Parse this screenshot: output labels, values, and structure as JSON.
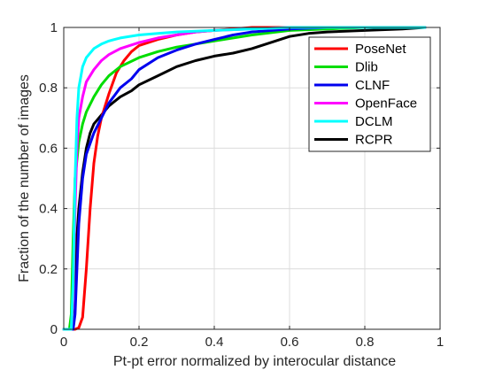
{
  "chart_data": {
    "type": "line",
    "title": "",
    "xlabel": "Pt-pt error normalized by interocular distance",
    "ylabel": "Fraction of the number of images",
    "xlim": [
      0,
      1
    ],
    "ylim": [
      0,
      1
    ],
    "xticks": [
      "0",
      "0.2",
      "0.4",
      "0.6",
      "0.8",
      "1"
    ],
    "yticks": [
      "0",
      "0.2",
      "0.4",
      "0.6",
      "0.8",
      "1"
    ],
    "grid": true,
    "legend_position": "top-right",
    "series": [
      {
        "name": "PoseNet",
        "color": "#ff0000",
        "points": [
          [
            0,
            0
          ],
          [
            0.03,
            0
          ],
          [
            0.04,
            0.005
          ],
          [
            0.05,
            0.04
          ],
          [
            0.06,
            0.2
          ],
          [
            0.07,
            0.4
          ],
          [
            0.08,
            0.55
          ],
          [
            0.09,
            0.64
          ],
          [
            0.1,
            0.7
          ],
          [
            0.12,
            0.78
          ],
          [
            0.14,
            0.85
          ],
          [
            0.16,
            0.89
          ],
          [
            0.18,
            0.92
          ],
          [
            0.2,
            0.94
          ],
          [
            0.25,
            0.96
          ],
          [
            0.3,
            0.975
          ],
          [
            0.35,
            0.985
          ],
          [
            0.4,
            0.99
          ],
          [
            0.45,
            0.995
          ],
          [
            0.5,
            1
          ],
          [
            0.96,
            1
          ]
        ]
      },
      {
        "name": "Dlib",
        "color": "#00dd00",
        "points": [
          [
            0,
            0
          ],
          [
            0.015,
            0
          ],
          [
            0.02,
            0.05
          ],
          [
            0.025,
            0.3
          ],
          [
            0.03,
            0.5
          ],
          [
            0.04,
            0.62
          ],
          [
            0.05,
            0.68
          ],
          [
            0.06,
            0.72
          ],
          [
            0.08,
            0.77
          ],
          [
            0.1,
            0.81
          ],
          [
            0.12,
            0.84
          ],
          [
            0.15,
            0.87
          ],
          [
            0.2,
            0.9
          ],
          [
            0.25,
            0.92
          ],
          [
            0.3,
            0.935
          ],
          [
            0.35,
            0.945
          ],
          [
            0.4,
            0.955
          ],
          [
            0.45,
            0.965
          ],
          [
            0.5,
            0.975
          ],
          [
            0.6,
            0.99
          ],
          [
            0.7,
            0.995
          ],
          [
            0.8,
            1
          ],
          [
            0.96,
            1
          ]
        ]
      },
      {
        "name": "CLNF",
        "color": "#0000ee",
        "points": [
          [
            0,
            0
          ],
          [
            0.025,
            0
          ],
          [
            0.03,
            0.05
          ],
          [
            0.035,
            0.2
          ],
          [
            0.04,
            0.35
          ],
          [
            0.05,
            0.5
          ],
          [
            0.06,
            0.58
          ],
          [
            0.08,
            0.65
          ],
          [
            0.1,
            0.7
          ],
          [
            0.12,
            0.75
          ],
          [
            0.15,
            0.8
          ],
          [
            0.18,
            0.83
          ],
          [
            0.2,
            0.86
          ],
          [
            0.25,
            0.9
          ],
          [
            0.3,
            0.925
          ],
          [
            0.35,
            0.945
          ],
          [
            0.4,
            0.96
          ],
          [
            0.45,
            0.975
          ],
          [
            0.5,
            0.985
          ],
          [
            0.6,
            0.995
          ],
          [
            0.7,
            1
          ],
          [
            0.96,
            1
          ]
        ]
      },
      {
        "name": "OpenFace",
        "color": "#ff00ff",
        "points": [
          [
            0,
            0
          ],
          [
            0.02,
            0
          ],
          [
            0.025,
            0.1
          ],
          [
            0.03,
            0.4
          ],
          [
            0.035,
            0.6
          ],
          [
            0.04,
            0.7
          ],
          [
            0.05,
            0.77
          ],
          [
            0.06,
            0.82
          ],
          [
            0.08,
            0.86
          ],
          [
            0.1,
            0.89
          ],
          [
            0.12,
            0.91
          ],
          [
            0.15,
            0.93
          ],
          [
            0.2,
            0.95
          ],
          [
            0.25,
            0.965
          ],
          [
            0.3,
            0.975
          ],
          [
            0.35,
            0.985
          ],
          [
            0.4,
            0.99
          ],
          [
            0.5,
            0.995
          ],
          [
            0.6,
            1
          ],
          [
            0.96,
            1
          ]
        ]
      },
      {
        "name": "DCLM",
        "color": "#00ffff",
        "points": [
          [
            0,
            0
          ],
          [
            0.02,
            0
          ],
          [
            0.025,
            0.15
          ],
          [
            0.03,
            0.5
          ],
          [
            0.035,
            0.7
          ],
          [
            0.04,
            0.8
          ],
          [
            0.05,
            0.87
          ],
          [
            0.06,
            0.9
          ],
          [
            0.08,
            0.93
          ],
          [
            0.1,
            0.945
          ],
          [
            0.12,
            0.955
          ],
          [
            0.15,
            0.965
          ],
          [
            0.2,
            0.975
          ],
          [
            0.25,
            0.98
          ],
          [
            0.3,
            0.985
          ],
          [
            0.4,
            0.99
          ],
          [
            0.5,
            0.995
          ],
          [
            0.6,
            1
          ],
          [
            0.96,
            1
          ]
        ]
      },
      {
        "name": "RCPR",
        "color": "#000000",
        "points": [
          [
            0,
            0
          ],
          [
            0.02,
            0
          ],
          [
            0.025,
            0.08
          ],
          [
            0.03,
            0.22
          ],
          [
            0.04,
            0.4
          ],
          [
            0.05,
            0.52
          ],
          [
            0.06,
            0.6
          ],
          [
            0.07,
            0.65
          ],
          [
            0.08,
            0.68
          ],
          [
            0.1,
            0.71
          ],
          [
            0.12,
            0.74
          ],
          [
            0.15,
            0.77
          ],
          [
            0.18,
            0.79
          ],
          [
            0.2,
            0.81
          ],
          [
            0.25,
            0.84
          ],
          [
            0.3,
            0.87
          ],
          [
            0.35,
            0.89
          ],
          [
            0.4,
            0.905
          ],
          [
            0.45,
            0.915
          ],
          [
            0.5,
            0.93
          ],
          [
            0.55,
            0.95
          ],
          [
            0.6,
            0.97
          ],
          [
            0.65,
            0.98
          ],
          [
            0.7,
            0.985
          ],
          [
            0.8,
            0.99
          ],
          [
            0.9,
            0.995
          ],
          [
            0.96,
            1
          ]
        ]
      }
    ]
  }
}
